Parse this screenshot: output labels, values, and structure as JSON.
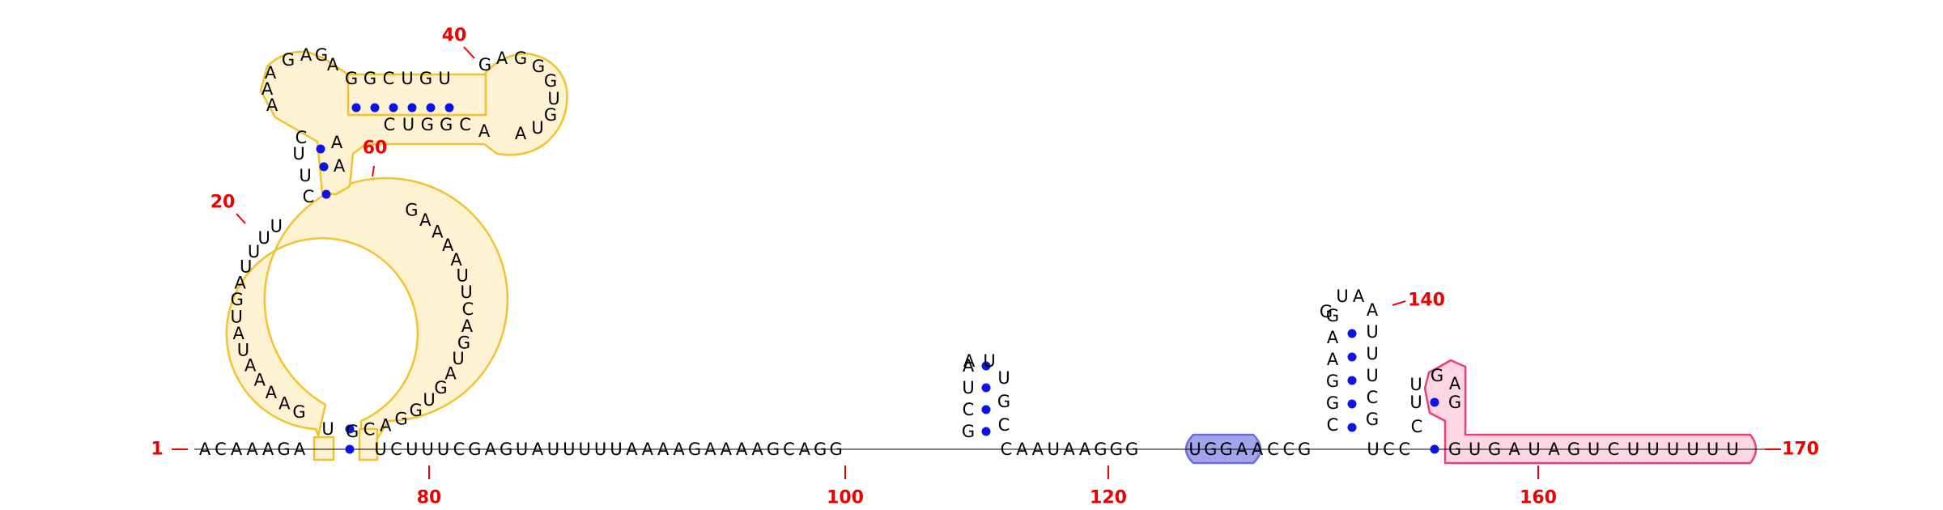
{
  "colors": {
    "nucleotide": "#000000",
    "pair_dot": "#0a14e6",
    "label": "#ee0000",
    "outline_yellow": "#f2c230",
    "fill_yellow": "#fdf2d2",
    "outline_blue": "#6c6cdc",
    "fill_blue": "#a2a4ec",
    "outline_pink": "#e8407a",
    "fill_pink": "#fcd6e2"
  },
  "labels": {
    "n1": "1",
    "n20": "20",
    "n40": "40",
    "n60": "60",
    "n80": "80",
    "n100": "100",
    "n120": "120",
    "n140": "140",
    "n160": "160",
    "n170": "170"
  },
  "sequence": {
    "left_arm": [
      "A",
      "C",
      "A",
      "A",
      "A",
      "G",
      "A"
    ],
    "s8_8": "U",
    "bigloop_left": [
      "G",
      "A",
      "A",
      "A",
      "A",
      "U",
      "A",
      "U",
      "G",
      "A",
      "U",
      "U",
      "U",
      "U"
    ],
    "s_upper": [
      "C",
      "U",
      "U",
      "C"
    ],
    "upper_left": [
      "A",
      "A",
      "A",
      "G",
      "A",
      "G",
      "A"
    ],
    "helix_top": [
      "G",
      "G",
      "C",
      "U",
      "G",
      "U"
    ],
    "small_loop": [
      "G",
      "A",
      "G",
      "G",
      "G",
      "U",
      "G",
      "U",
      "A"
    ],
    "helix_bottom": [
      "A",
      "C",
      "G",
      "G",
      "U",
      "C"
    ],
    "s_up_right": [
      "A",
      "A"
    ],
    "bigloop_right": [
      "G",
      "A",
      "A",
      "A",
      "A",
      "U",
      "U",
      "C",
      "A",
      "G",
      "U",
      "A",
      "G",
      "U",
      "G",
      "G",
      "A",
      "C",
      "G"
    ],
    "bottom_row_a": [
      "U",
      "C",
      "U",
      "U",
      "U",
      "C",
      "G",
      "A",
      "G",
      "U",
      "A",
      "U",
      "U",
      "U",
      "U",
      "U",
      "A",
      "A",
      "A",
      "A",
      "G",
      "A",
      "A",
      "A",
      "A",
      "G",
      "C",
      "A",
      "G",
      "G"
    ],
    "hp1_left": [
      "G",
      "C",
      "U",
      "A"
    ],
    "hp1_right": [
      "U",
      "U",
      "G",
      "C"
    ],
    "bottom_row_b": [
      "C",
      "A",
      "A",
      "U",
      "A",
      "A",
      "G",
      "G",
      "G"
    ],
    "blue_block": [
      "U",
      "G",
      "G",
      "A"
    ],
    "bottom_row_c": [
      "A",
      "C",
      "C",
      "G"
    ],
    "hp2_left": [
      "C",
      "G",
      "G",
      "A",
      "A",
      "G"
    ],
    "hp2_loop": [
      "U",
      "A"
    ],
    "hp2_right": [
      "A",
      "U",
      "U",
      "U",
      "C",
      "G"
    ],
    "bottom_row_d": [
      "U",
      "C",
      "C"
    ],
    "hp3_left": [
      "C",
      "U",
      "U"
    ],
    "hp3_right": [
      "G",
      "A",
      "G"
    ],
    "pink_tail": [
      "G",
      "U",
      "G",
      "A",
      "U",
      "A",
      "G",
      "U",
      "C",
      "U",
      "U",
      "U",
      "U",
      "U",
      "U"
    ]
  }
}
